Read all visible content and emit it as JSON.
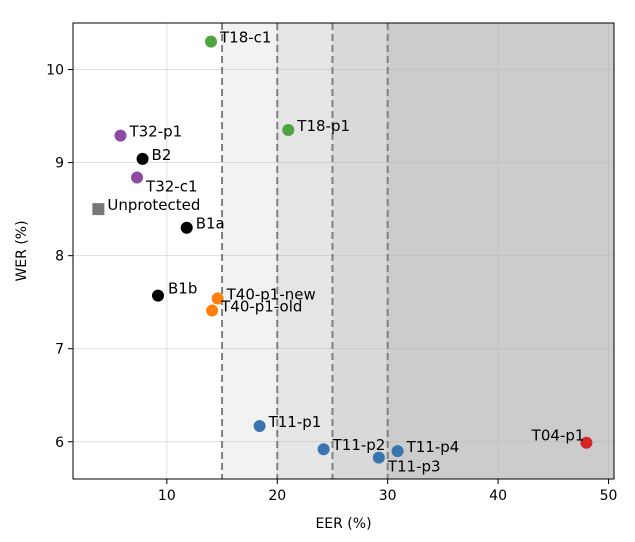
{
  "chart_data": {
    "type": "scatter",
    "title": "",
    "xlabel": "EER (%)",
    "ylabel": "WER (%)",
    "xlim": [
      1.5,
      50.5
    ],
    "ylim": [
      5.6,
      10.5
    ],
    "xticks": [
      10,
      20,
      30,
      40,
      50
    ],
    "yticks": [
      6,
      7,
      8,
      9,
      10
    ],
    "grid": true,
    "thresholds": [
      15,
      20,
      25,
      30
    ],
    "shaded_bands": [
      {
        "from": 15,
        "to": 20,
        "color": "#f2f2f2"
      },
      {
        "from": 20,
        "to": 25,
        "color": "#e5e5e5"
      },
      {
        "from": 25,
        "to": 30,
        "color": "#d9d9d9"
      },
      {
        "from": 30,
        "to": 50.5,
        "color": "#cccccc"
      }
    ],
    "points": [
      {
        "label": "T18-c1",
        "x": 14,
        "y": 10.3,
        "color": "#4ea53f",
        "marker": "circle",
        "anchor": "right"
      },
      {
        "label": "T18-p1",
        "x": 21,
        "y": 9.35,
        "color": "#4ea53f",
        "marker": "circle",
        "anchor": "right"
      },
      {
        "label": "T32-p1",
        "x": 5.8,
        "y": 9.29,
        "color": "#8e4ba5",
        "marker": "circle",
        "anchor": "right"
      },
      {
        "label": "B2",
        "x": 7.8,
        "y": 9.04,
        "color": "#000000",
        "marker": "circle",
        "anchor": "right"
      },
      {
        "label": "T32-c1",
        "x": 7.3,
        "y": 8.84,
        "color": "#8e4ba5",
        "marker": "circle",
        "anchor": "right-below"
      },
      {
        "label": "Unprotected",
        "x": 3.8,
        "y": 8.5,
        "color": "#777777",
        "marker": "square",
        "anchor": "right"
      },
      {
        "label": "B1a",
        "x": 11.8,
        "y": 8.3,
        "color": "#000000",
        "marker": "circle",
        "anchor": "right"
      },
      {
        "label": "B1b",
        "x": 9.2,
        "y": 7.57,
        "color": "#000000",
        "marker": "circle",
        "anchor": "right-far"
      },
      {
        "label": "T40-p1-new",
        "x": 14.6,
        "y": 7.54,
        "color": "#ff7f0e",
        "marker": "circle",
        "anchor": "right"
      },
      {
        "label": "T40-p1-old",
        "x": 14.1,
        "y": 7.41,
        "color": "#ff7f0e",
        "marker": "circle",
        "anchor": "right"
      },
      {
        "label": "T11-p1",
        "x": 18.4,
        "y": 6.17,
        "color": "#3b75af",
        "marker": "circle",
        "anchor": "right"
      },
      {
        "label": "T11-p2",
        "x": 24.2,
        "y": 5.92,
        "color": "#3b75af",
        "marker": "circle",
        "anchor": "right"
      },
      {
        "label": "T11-p3",
        "x": 29.2,
        "y": 5.83,
        "color": "#3b75af",
        "marker": "circle",
        "anchor": "right-below"
      },
      {
        "label": "T11-p4",
        "x": 30.9,
        "y": 5.9,
        "color": "#3b75af",
        "marker": "circle",
        "anchor": "right"
      },
      {
        "label": "T04-p1",
        "x": 48,
        "y": 5.99,
        "color": "#d62728",
        "marker": "circle",
        "anchor": "left"
      }
    ]
  }
}
